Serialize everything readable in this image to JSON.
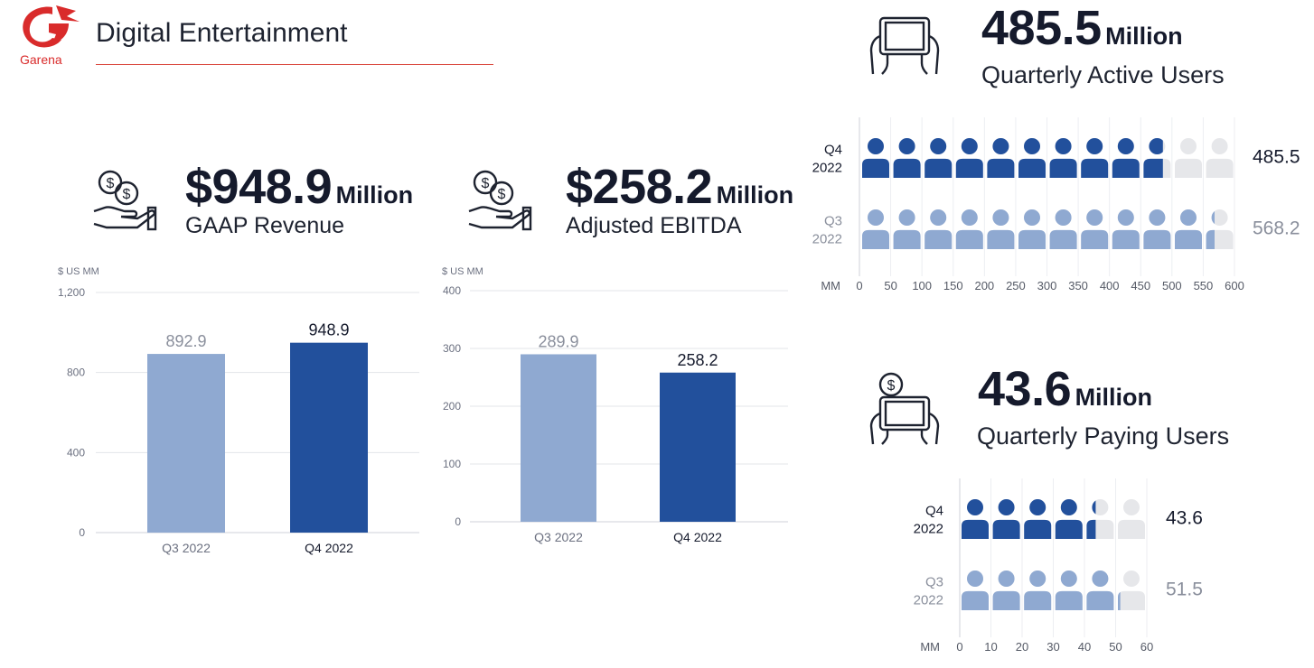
{
  "header": {
    "brand": "Garena",
    "title": "Digital Entertainment"
  },
  "colors": {
    "dark": "#22509c",
    "light": "#8fa9d1",
    "empty": "#e6e7ea",
    "accent": "#d9443a"
  },
  "kpis": {
    "revenue": {
      "value": "$948.9",
      "unit": "Million",
      "label": "GAAP Revenue",
      "icon": "hand-coins-icon"
    },
    "ebitda": {
      "value": "$258.2",
      "unit": "Million",
      "label": "Adjusted EBITDA",
      "icon": "hand-coins-icon"
    },
    "qau": {
      "value": "485.5",
      "unit": "Million",
      "label": "Quarterly Active Users",
      "icon": "tablet-hands-icon"
    },
    "qpu": {
      "value": "43.6",
      "unit": "Million",
      "label": "Quarterly Paying Users",
      "icon": "tablet-dollar-icon"
    }
  },
  "chart_data": [
    {
      "type": "bar",
      "unit_label": "$ US MM",
      "categories": [
        "Q3 2022",
        "Q4 2022"
      ],
      "values": [
        892.9,
        948.9
      ],
      "value_labels": [
        "892.9",
        "948.9"
      ],
      "ylim": [
        0,
        1200
      ],
      "ticks": [
        0,
        400,
        800,
        1200
      ],
      "tick_labels": [
        "0",
        "400",
        "800",
        "1,200"
      ],
      "grid": true
    },
    {
      "type": "bar",
      "unit_label": "$ US MM",
      "categories": [
        "Q3 2022",
        "Q4 2022"
      ],
      "values": [
        289.9,
        258.2
      ],
      "value_labels": [
        "289.9",
        "258.2"
      ],
      "ylim": [
        0,
        400
      ],
      "ticks": [
        0,
        100,
        200,
        300,
        400
      ],
      "tick_labels": [
        "0",
        "100",
        "200",
        "300",
        "400"
      ],
      "grid": true
    },
    {
      "type": "bar",
      "orientation": "horizontal",
      "axis_label": "MM",
      "rows": [
        {
          "label_top": "Q4",
          "label_bottom": "2022",
          "value": 485.5,
          "value_label": "485.5"
        },
        {
          "label_top": "Q3",
          "label_bottom": "2022",
          "value": 568.2,
          "value_label": "568.2"
        }
      ],
      "xlim": [
        0,
        600
      ],
      "ticks": [
        "0",
        "50",
        "100",
        "150",
        "200",
        "250",
        "300",
        "350",
        "400",
        "450",
        "500",
        "550",
        "600"
      ]
    },
    {
      "type": "bar",
      "orientation": "horizontal",
      "axis_label": "MM",
      "rows": [
        {
          "label_top": "Q4",
          "label_bottom": "2022",
          "value": 43.6,
          "value_label": "43.6"
        },
        {
          "label_top": "Q3",
          "label_bottom": "2022",
          "value": 51.5,
          "value_label": "51.5"
        }
      ],
      "xlim": [
        0,
        60
      ],
      "ticks": [
        "0",
        "10",
        "20",
        "30",
        "40",
        "50",
        "60"
      ]
    }
  ]
}
